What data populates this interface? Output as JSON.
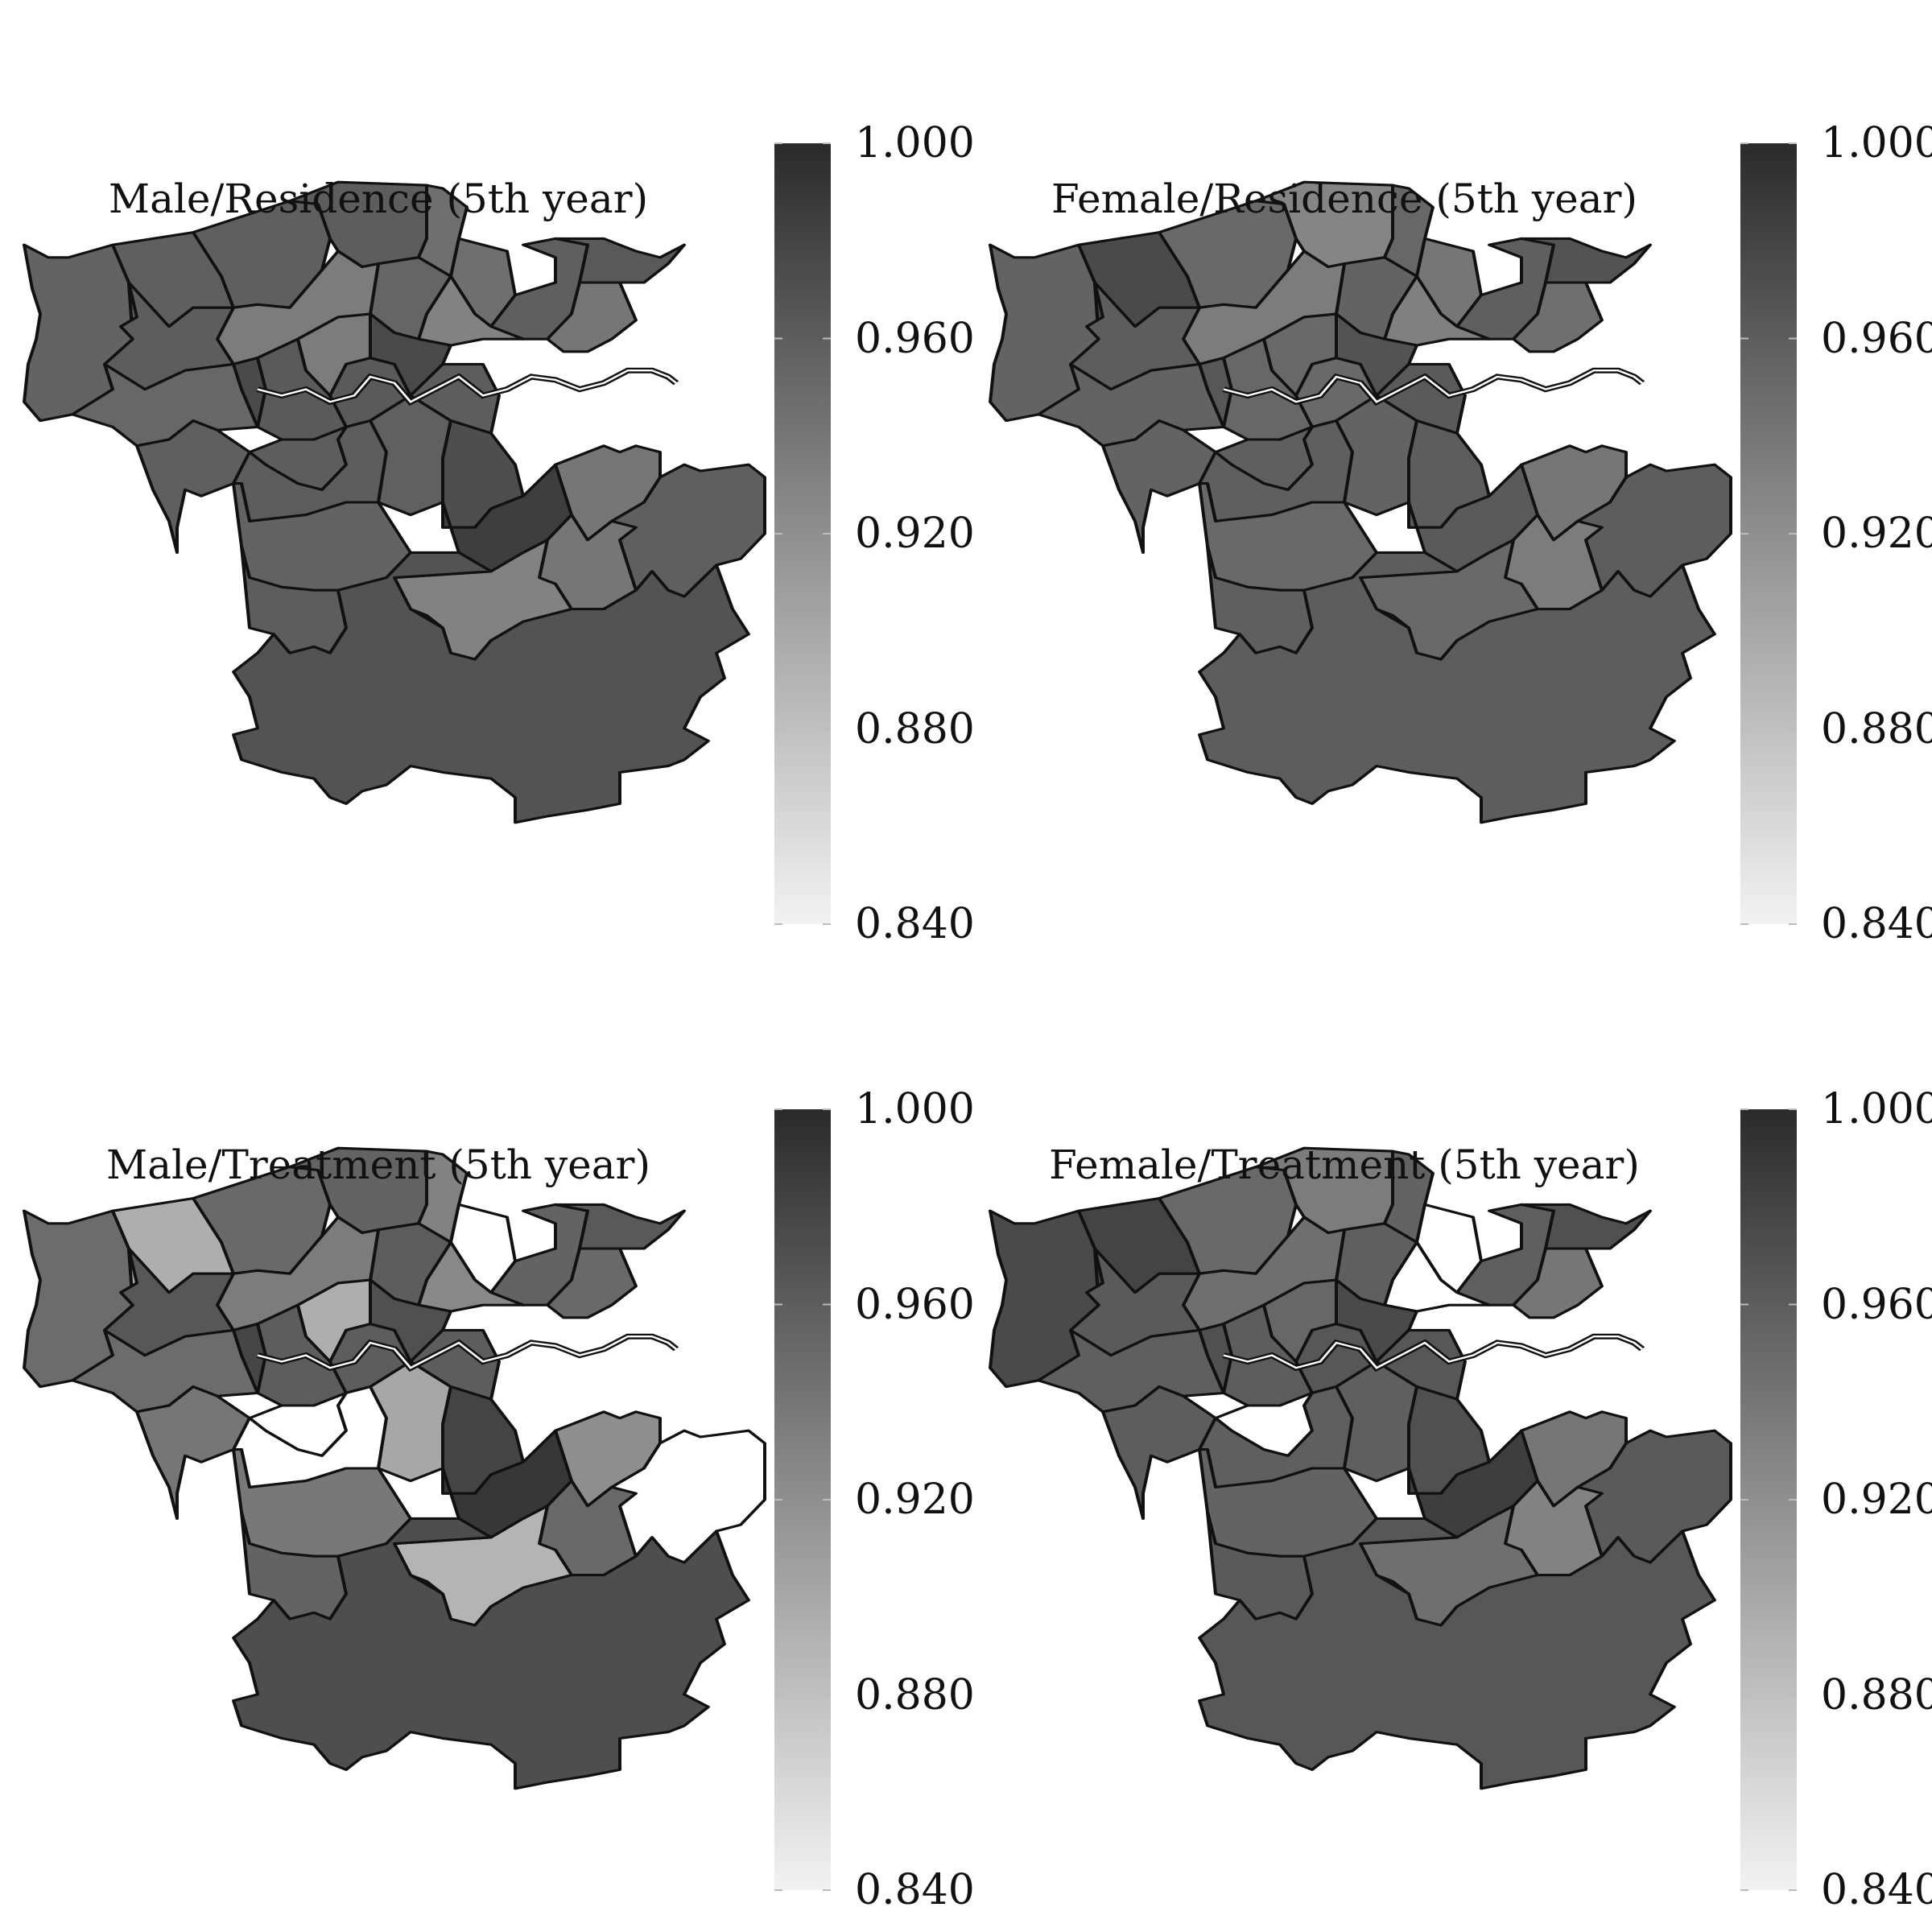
{
  "colorbar": {
    "min": 0.84,
    "max": 1.0,
    "ticks": [
      "1.000",
      "0.960",
      "0.920",
      "0.880",
      "0.840"
    ],
    "light_color": "#f2f2f2",
    "dark_color": "#2b2b2b"
  },
  "panels": [
    {
      "title": "Male/Residence (5th year)",
      "regions": [
        {
          "v": 0.955
        },
        {
          "v": 0.958
        },
        {
          "v": 0.958
        },
        {
          "v": 0.96
        },
        {
          "v": 0.945
        },
        {
          "v": 0.945
        },
        {
          "v": 0.958
        },
        {
          "v": 0.94
        },
        {
          "v": 0.963
        },
        {
          "v": 0.93
        },
        {
          "v": 0.953
        },
        {
          "v": 0.935
        },
        {
          "v": 0.96
        },
        {
          "v": 0.952
        },
        {
          "v": 0.975
        },
        {
          "v": 0.962
        },
        {
          "v": 0.935
        },
        {
          "v": 0.962
        },
        {
          "v": 0.975
        },
        {
          "v": 0.96
        },
        {
          "v": 0.958
        },
        {
          "v": 0.96
        },
        {
          "v": 0.955
        },
        {
          "v": 0.96
        },
        {
          "v": 0.957
        },
        {
          "v": 0.96
        },
        {
          "v": 0.972
        },
        {
          "v": 0.985
        },
        {
          "v": 0.94
        },
        {
          "v": 0.94
        },
        {
          "v": 0.958
        },
        {
          "v": 0.93
        },
        {
          "v": 0.968
        }
      ]
    },
    {
      "title": "Female/Residence (5th year)",
      "regions": [
        {
          "v": 0.955
        },
        {
          "v": 0.975
        },
        {
          "v": 0.95
        },
        {
          "v": 0.928
        },
        {
          "v": 0.952
        },
        {
          "v": 0.94
        },
        {
          "v": 0.958
        },
        {
          "v": 0.945
        },
        {
          "v": 0.968
        },
        {
          "v": 0.932
        },
        {
          "v": 0.955
        },
        {
          "v": 0.935
        },
        {
          "v": 0.96
        },
        {
          "v": 0.955
        },
        {
          "v": 0.965
        },
        {
          "v": 0.952
        },
        {
          "v": 0.95
        },
        {
          "v": 0.95
        },
        {
          "v": 0.968
        },
        {
          "v": 0.958
        },
        {
          "v": 0.955
        },
        {
          "v": 0.958
        },
        {
          "v": 0.95
        },
        {
          "v": 0.958
        },
        {
          "v": 0.955
        },
        {
          "v": 0.962
        },
        {
          "v": 0.96
        },
        {
          "v": 0.962
        },
        {
          "v": 0.94
        },
        {
          "v": 0.935
        },
        {
          "v": 0.96
        },
        {
          "v": 0.95
        },
        {
          "v": 0.96
        }
      ]
    },
    {
      "title": "Male/Treatment (5th year)",
      "regions": [
        {
          "v": 0.948
        },
        {
          "v": 0.895
        },
        {
          "v": 0.95
        },
        {
          "v": 0.955
        },
        {
          "v": 0.93
        },
        {
          "v": null
        },
        {
          "v": 0.955
        },
        {
          "v": 0.95
        },
        {
          "v": 0.963
        },
        {
          "v": 0.925
        },
        {
          "v": 0.96
        },
        {
          "v": 0.935
        },
        {
          "v": 0.965
        },
        {
          "v": 0.948
        },
        {
          "v": 0.978
        },
        {
          "v": 0.96
        },
        {
          "v": 0.895
        },
        {
          "v": 0.96
        },
        {
          "v": 0.97
        },
        {
          "v": null
        },
        {
          "v": 0.94
        },
        {
          "v": null
        },
        {
          "v": 0.938
        },
        {
          "v": 0.955
        },
        {
          "v": 0.9
        },
        {
          "v": 0.96
        },
        {
          "v": 0.98
        },
        {
          "v": 0.99
        },
        {
          "v": 0.92
        },
        {
          "v": 0.95
        },
        {
          "v": null
        },
        {
          "v": 0.89
        },
        {
          "v": 0.972
        }
      ]
    },
    {
      "title": "Female/Treatment (5th year)",
      "regions": [
        {
          "v": 0.975
        },
        {
          "v": 0.98
        },
        {
          "v": 0.95
        },
        {
          "v": 0.935
        },
        {
          "v": 0.955
        },
        {
          "v": null
        },
        {
          "v": 0.958
        },
        {
          "v": 0.94
        },
        {
          "v": 0.97
        },
        {
          "v": null
        },
        {
          "v": 0.958
        },
        {
          "v": 0.945
        },
        {
          "v": 0.962
        },
        {
          "v": 0.958
        },
        {
          "v": 0.97
        },
        {
          "v": 0.96
        },
        {
          "v": 0.952
        },
        {
          "v": 0.965
        },
        {
          "v": 0.975
        },
        {
          "v": null
        },
        {
          "v": 0.96
        },
        {
          "v": 0.958
        },
        {
          "v": 0.955
        },
        {
          "v": 0.962
        },
        {
          "v": 0.958
        },
        {
          "v": 0.965
        },
        {
          "v": 0.97
        },
        {
          "v": 0.985
        },
        {
          "v": 0.94
        },
        {
          "v": 0.93
        },
        {
          "v": 0.962
        },
        {
          "v": 0.945
        },
        {
          "v": 0.965
        }
      ]
    }
  ]
}
